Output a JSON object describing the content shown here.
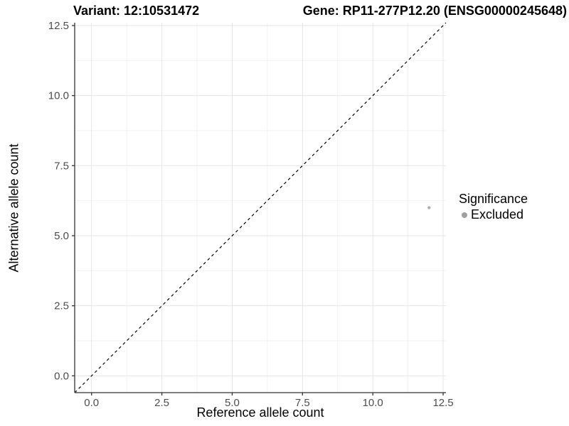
{
  "titles": {
    "variant": "Variant: 12:10531472",
    "gene": "Gene: RP11-277P12.20 (ENSG00000245648)"
  },
  "chart_data": {
    "type": "scatter",
    "xlabel": "Reference allele count",
    "ylabel": "Alternative allele count",
    "xlim": [
      -0.6,
      12.6
    ],
    "ylim": [
      -0.6,
      12.6
    ],
    "xticks": [
      0.0,
      2.5,
      5.0,
      7.5,
      10.0,
      12.5
    ],
    "yticks": [
      0.0,
      2.5,
      5.0,
      7.5,
      10.0,
      12.5
    ],
    "xticks_minor": [
      1.25,
      3.75,
      6.25,
      8.75,
      11.25
    ],
    "yticks_minor": [
      1.25,
      3.75,
      6.25,
      8.75,
      11.25
    ],
    "tick_label_format_decimals": 1,
    "grid": true,
    "identity_line": {
      "slope": 1,
      "intercept": 0,
      "style": "dashed",
      "color": "#000000"
    },
    "series": [
      {
        "name": "Excluded",
        "color": "#aaaaaa",
        "points": [
          {
            "x": 12,
            "y": 6
          }
        ]
      }
    ],
    "legend": {
      "title": "Significance",
      "position": "right",
      "items": [
        {
          "label": "Excluded",
          "color": "#a0a0a0"
        }
      ]
    },
    "colors": {
      "grid_major": "#e6e6e6",
      "grid_minor": "#f2f2f2",
      "axis_line": "#333333",
      "tick_mark": "#333333",
      "tick_label": "#4d4d4d",
      "background": "#ffffff"
    }
  }
}
